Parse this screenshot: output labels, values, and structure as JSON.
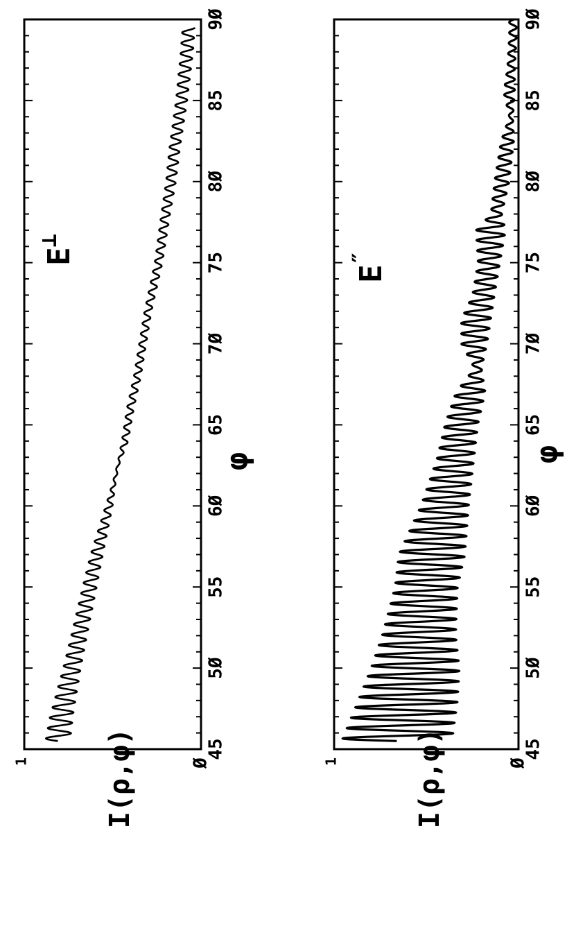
{
  "chart_data": [
    {
      "type": "line",
      "panel_label": "E",
      "panel_label_sup": "⊥",
      "xlabel": "φ",
      "ylabel": "I(ρ,φ)",
      "xlim": [
        45,
        90
      ],
      "ylim": [
        0,
        1
      ],
      "x_ticks": [
        45,
        50,
        55,
        60,
        65,
        70,
        75,
        80,
        85,
        90
      ],
      "x_tick_labels": [
        "45",
        "5Ø",
        "55",
        "6Ø",
        "65",
        "7Ø",
        "75",
        "8Ø",
        "85",
        "9Ø"
      ],
      "y_tick_labels": [
        "Ø",
        "1"
      ],
      "grid": false,
      "series": [
        {
          "oscillation_period": 0.64,
          "envelope": {
            "x": [
              45.5,
              47,
              50,
              52,
              55,
              57,
              60,
              61.5,
              62.5,
              64,
              66,
              68,
              70,
              72,
              75,
              78,
              80,
              82,
              85,
              88,
              89.5
            ],
            "center": [
              0.81,
              0.79,
              0.73,
              0.69,
              0.63,
              0.59,
              0.52,
              0.49,
              0.47,
              0.43,
              0.4,
              0.36,
              0.33,
              0.3,
              0.24,
              0.2,
              0.17,
              0.15,
              0.11,
              0.08,
              0.07
            ],
            "amplitude": [
              0.07,
              0.065,
              0.05,
              0.045,
              0.04,
              0.035,
              0.02,
              0.008,
              0.005,
              0.018,
              0.02,
              0.02,
              0.02,
              0.02,
              0.022,
              0.025,
              0.028,
              0.03,
              0.032,
              0.035,
              0.035
            ]
          }
        }
      ]
    },
    {
      "type": "line",
      "panel_label": "E",
      "panel_label_sup": "″",
      "xlabel": "φ",
      "ylabel": "I(ρ,φ)",
      "xlim": [
        45,
        90
      ],
      "ylim": [
        0,
        1
      ],
      "x_ticks": [
        45,
        50,
        55,
        60,
        65,
        70,
        75,
        80,
        85,
        90
      ],
      "x_tick_labels": [
        "45",
        "5Ø",
        "55",
        "6Ø",
        "65",
        "7Ø",
        "75",
        "8Ø",
        "85",
        "9Ø"
      ],
      "y_tick_labels": [
        "Ø",
        "1"
      ],
      "grid": false,
      "series": [
        {
          "oscillation_period": 0.64,
          "envelope": {
            "x": [
              45.5,
              48,
              50,
              52,
              55,
              57,
              60,
              63,
              65,
              67,
              68.5,
              70,
              71.5,
              73,
              75,
              77,
              78,
              80,
              82.5,
              84,
              85.5,
              87,
              89,
              90
            ],
            "center": [
              0.66,
              0.6,
              0.56,
              0.54,
              0.5,
              0.47,
              0.4,
              0.34,
              0.31,
              0.26,
              0.22,
              0.24,
              0.23,
              0.19,
              0.16,
              0.15,
              0.12,
              0.09,
              0.06,
              0.04,
              0.05,
              0.04,
              0.03,
              0.03
            ],
            "amplitude": [
              0.3,
              0.27,
              0.24,
              0.2,
              0.17,
              0.18,
              0.13,
              0.1,
              0.09,
              0.08,
              0.02,
              0.07,
              0.08,
              0.06,
              0.06,
              0.08,
              0.03,
              0.04,
              0.035,
              0.01,
              0.03,
              0.02,
              0.02,
              0.02
            ]
          }
        }
      ]
    }
  ]
}
